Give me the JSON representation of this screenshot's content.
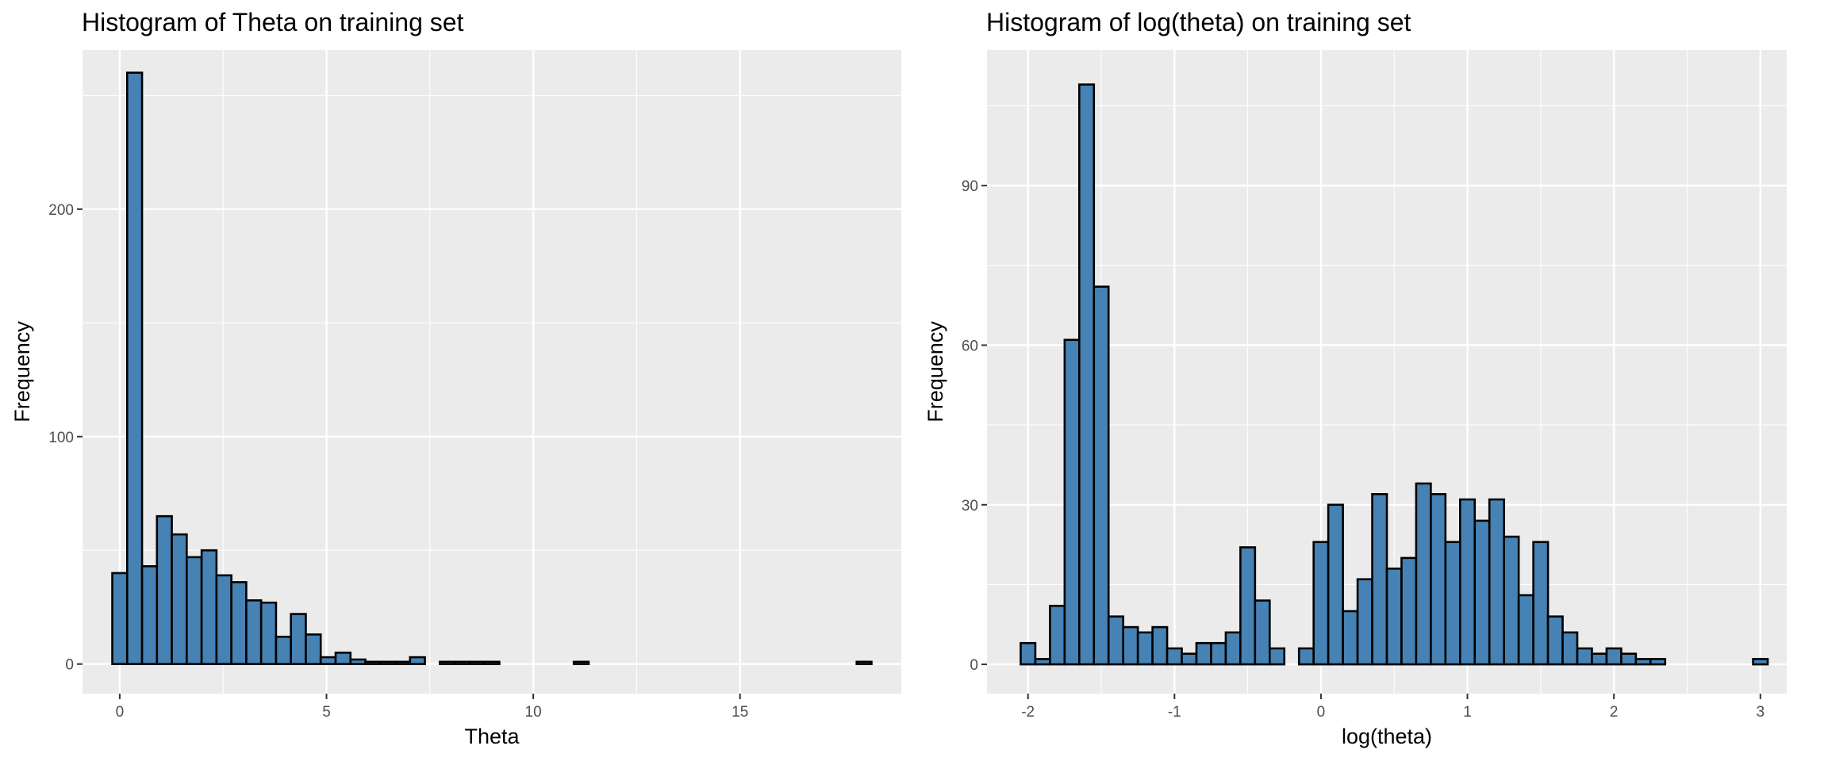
{
  "colors": {
    "panel_background": "#ebebeb",
    "grid_major": "#ffffff",
    "bar_fill": "#4682b4",
    "bar_outline": "#000000"
  },
  "chart_data": [
    {
      "type": "bar",
      "title": "Histogram of Theta on training set",
      "xlabel": "Theta",
      "ylabel": "Frequency",
      "xlim": [
        -0.9,
        18.9
      ],
      "ylim": [
        -13,
        270
      ],
      "x_ticks": [
        0,
        5,
        10,
        15
      ],
      "x_tick_labels": [
        "0",
        "5",
        "10",
        "15"
      ],
      "y_ticks": [
        0,
        100,
        200
      ],
      "y_tick_labels": [
        "0",
        "100",
        "200"
      ],
      "grid": true,
      "bin_start": -0.18,
      "bin_width": 0.36,
      "values": [
        40,
        260,
        43,
        65,
        57,
        47,
        50,
        39,
        36,
        28,
        27,
        12,
        22,
        13,
        3,
        5,
        2,
        1,
        1,
        1,
        3,
        0,
        1,
        1,
        1,
        1,
        0,
        0,
        0,
        0,
        0,
        1,
        0,
        0,
        0,
        0,
        0,
        0,
        0,
        0,
        0,
        0,
        0,
        0,
        0,
        0,
        0,
        0,
        0,
        0,
        1
      ]
    },
    {
      "type": "bar",
      "title": "Histogram of log(theta) on training set",
      "xlabel": "log(theta)",
      "ylabel": "Frequency",
      "xlim": [
        -2.28,
        3.18
      ],
      "ylim": [
        -5.5,
        115.5
      ],
      "x_ticks": [
        -2,
        -1,
        0,
        1,
        2,
        3
      ],
      "x_tick_labels": [
        "-2",
        "-1",
        "0",
        "1",
        "2",
        "3"
      ],
      "y_ticks": [
        0,
        30,
        60,
        90
      ],
      "y_tick_labels": [
        "0",
        "30",
        "60",
        "90"
      ],
      "grid": true,
      "bin_start": -2.05,
      "bin_width": 0.1,
      "values": [
        4,
        1,
        11,
        61,
        109,
        71,
        9,
        7,
        6,
        7,
        3,
        2,
        4,
        4,
        6,
        22,
        12,
        3,
        0,
        3,
        23,
        30,
        10,
        16,
        32,
        18,
        20,
        34,
        32,
        23,
        31,
        27,
        31,
        24,
        13,
        23,
        9,
        6,
        3,
        2,
        3,
        2,
        1,
        1,
        0,
        0,
        0,
        0,
        0,
        0,
        1
      ]
    }
  ]
}
